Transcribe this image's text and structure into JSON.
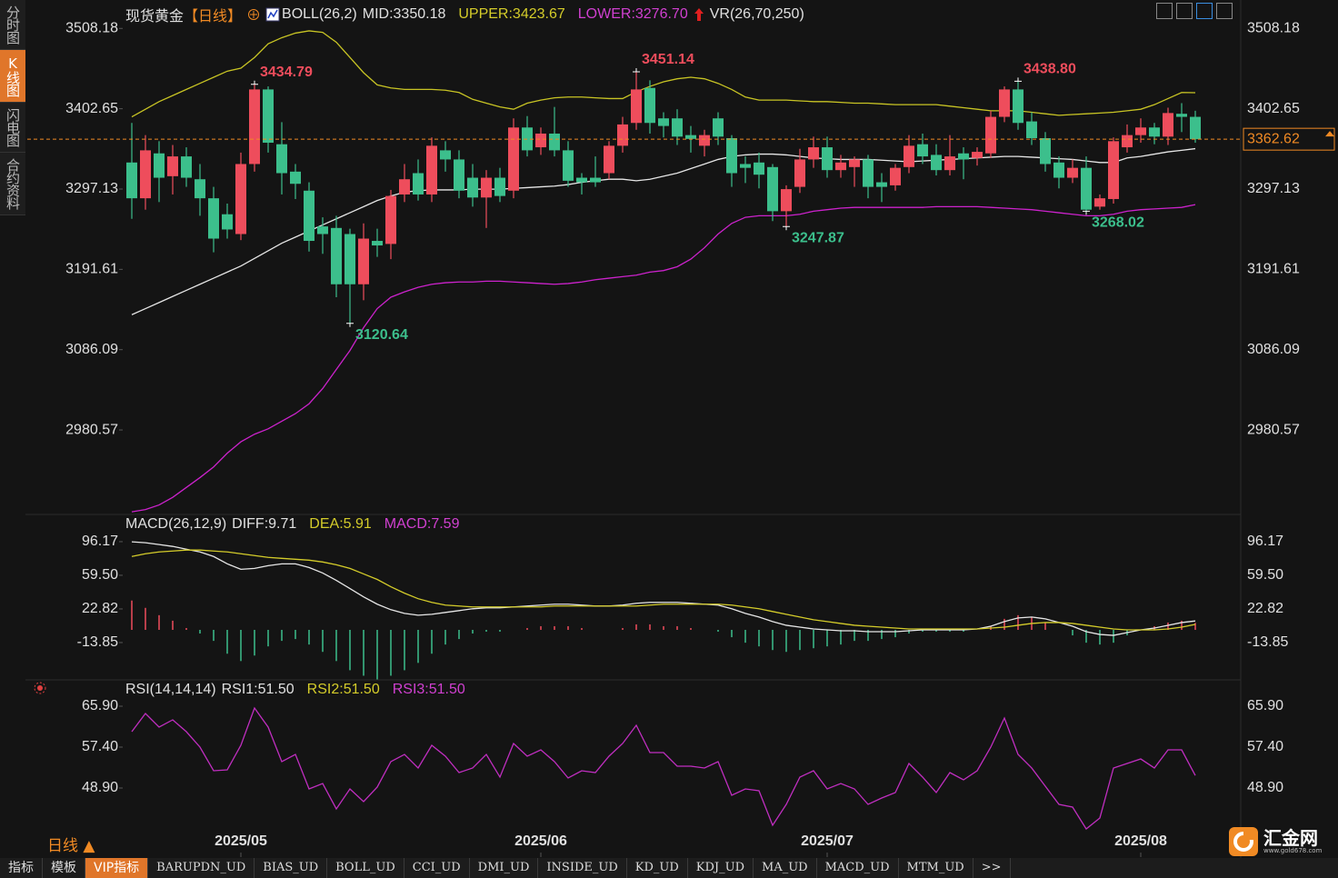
{
  "chart_data": [
    {
      "type": "candlestick",
      "legend": [
        {
          "text": "现货黄金",
          "color": "#e0e0e0"
        },
        {
          "text": "【日线】",
          "color": "#f08a24"
        },
        {
          "text": "BOLL(26,2)",
          "color": "#e0e0e0"
        },
        {
          "text": "MID:3350.18",
          "color": "#e0e0e0"
        },
        {
          "text": "UPPER:3423.67",
          "color": "#d4cc2a"
        },
        {
          "text": "LOWER:3276.70",
          "color": "#d040d0"
        },
        {
          "text": "VR(26,70,250)",
          "color": "#e0e0e0"
        }
      ],
      "up_color": "#ee4d5c",
      "down_color": "#3cbf8c",
      "last_price_color": "#f08a24",
      "ylim": [
        2860,
        3530
      ],
      "yticks": [
        3508.18,
        3402.65,
        3297.13,
        3191.61,
        3086.09,
        2980.57
      ],
      "open": [
        3332,
        3285,
        3344,
        3314,
        3340,
        3310,
        3285,
        3264,
        3238,
        3330,
        3428,
        3356,
        3320,
        3295,
        3248,
        3246,
        3238,
        3172,
        3229,
        3225,
        3290,
        3318,
        3290,
        3348,
        3336,
        3312,
        3286,
        3312,
        3295,
        3378,
        3352,
        3370,
        3348,
        3312,
        3312,
        3318,
        3354,
        3384,
        3430,
        3390,
        3390,
        3368,
        3354,
        3390,
        3364,
        3330,
        3332,
        3326,
        3268,
        3300,
        3336,
        3352,
        3322,
        3326,
        3336,
        3306,
        3302,
        3326,
        3356,
        3342,
        3322,
        3344,
        3338,
        3344,
        3392,
        3428,
        3386,
        3364,
        3332,
        3312,
        3325,
        3274,
        3284,
        3352,
        3368,
        3378,
        3366,
        3396,
        3392
      ],
      "high": [
        3384,
        3368,
        3360,
        3355,
        3352,
        3330,
        3300,
        3278,
        3345,
        3434.79,
        3432,
        3385,
        3330,
        3306,
        3260,
        3262,
        3245,
        3252,
        3245,
        3296,
        3330,
        3336,
        3365,
        3360,
        3348,
        3330,
        3322,
        3325,
        3390,
        3393,
        3378,
        3405,
        3360,
        3318,
        3340,
        3360,
        3392,
        3451.14,
        3440,
        3398,
        3402,
        3380,
        3375,
        3398,
        3368,
        3340,
        3345,
        3330,
        3302,
        3350,
        3366,
        3366,
        3342,
        3340,
        3342,
        3318,
        3330,
        3368,
        3370,
        3356,
        3368,
        3352,
        3352,
        3400,
        3432,
        3438.8,
        3398,
        3372,
        3340,
        3336,
        3340,
        3290,
        3365,
        3382,
        3390,
        3384,
        3404,
        3410,
        3400
      ],
      "low": [
        3258,
        3270,
        3280,
        3290,
        3300,
        3262,
        3214,
        3232,
        3230,
        3320,
        3345,
        3290,
        3284,
        3215,
        3212,
        3155,
        3120.64,
        3151,
        3208,
        3205,
        3280,
        3282,
        3280,
        3320,
        3285,
        3274,
        3246,
        3280,
        3285,
        3340,
        3342,
        3340,
        3300,
        3290,
        3300,
        3310,
        3345,
        3375,
        3370,
        3365,
        3355,
        3345,
        3340,
        3355,
        3300,
        3305,
        3298,
        3255,
        3247.87,
        3292,
        3325,
        3312,
        3312,
        3300,
        3285,
        3280,
        3295,
        3318,
        3330,
        3315,
        3315,
        3310,
        3328,
        3338,
        3385,
        3375,
        3355,
        3320,
        3298,
        3305,
        3268.02,
        3270,
        3278,
        3345,
        3358,
        3356,
        3355,
        3372,
        3358
      ],
      "close": [
        3285,
        3348,
        3312,
        3340,
        3312,
        3285,
        3232,
        3244,
        3330,
        3428,
        3358,
        3318,
        3304,
        3229,
        3238,
        3172,
        3172,
        3232,
        3223,
        3288,
        3310,
        3290,
        3354,
        3336,
        3295,
        3286,
        3312,
        3288,
        3378,
        3348,
        3370,
        3348,
        3308,
        3306,
        3306,
        3354,
        3382,
        3428,
        3384,
        3380,
        3366,
        3363,
        3368,
        3366,
        3318,
        3325,
        3316,
        3268,
        3297,
        3336,
        3352,
        3322,
        3332,
        3336,
        3300,
        3300,
        3325,
        3354,
        3340,
        3322,
        3340,
        3336,
        3346,
        3392,
        3428,
        3384,
        3364,
        3330,
        3312,
        3325,
        3270,
        3285,
        3360,
        3368,
        3378,
        3366,
        3397,
        3392,
        3362.62
      ],
      "high_annotations": [
        {
          "x": 9,
          "label": "3434.79"
        },
        {
          "x": 37,
          "label": "3451.14"
        },
        {
          "x": 65,
          "label": "3438.80"
        }
      ],
      "low_annotations": [
        {
          "x": 16,
          "label": "3120.64"
        },
        {
          "x": 48,
          "label": "3247.87"
        },
        {
          "x": 70,
          "label": "3268.02"
        }
      ],
      "series": [
        {
          "color": "#c8c424",
          "values": [
            3392,
            3402,
            3412,
            3420,
            3428,
            3436,
            3444,
            3452,
            3456,
            3470,
            3488,
            3496,
            3502,
            3505,
            3503,
            3490,
            3470,
            3450,
            3434,
            3430,
            3428,
            3428,
            3428,
            3427,
            3424,
            3415,
            3410,
            3405,
            3402,
            3410,
            3414,
            3417,
            3418,
            3418,
            3417,
            3416,
            3416,
            3425,
            3432,
            3438,
            3442,
            3444,
            3442,
            3436,
            3428,
            3418,
            3414,
            3414,
            3414,
            3413,
            3412,
            3412,
            3411,
            3410,
            3410,
            3409,
            3408,
            3408,
            3408,
            3408,
            3406,
            3404,
            3402,
            3400,
            3400,
            3400,
            3398,
            3396,
            3394,
            3395,
            3396,
            3397,
            3398,
            3400,
            3402,
            3408,
            3416,
            3424,
            3423.67
          ]
        },
        {
          "color": "#e6e6e6",
          "values": [
            3132,
            3140,
            3148,
            3156,
            3164,
            3172,
            3180,
            3188,
            3196,
            3206,
            3216,
            3226,
            3234,
            3242,
            3250,
            3258,
            3266,
            3274,
            3282,
            3288,
            3293,
            3295,
            3296,
            3296,
            3296,
            3297,
            3297,
            3297,
            3298,
            3299,
            3300,
            3301,
            3303,
            3306,
            3308,
            3310,
            3310,
            3308,
            3310,
            3314,
            3318,
            3324,
            3330,
            3336,
            3340,
            3342,
            3343,
            3343,
            3342,
            3340,
            3338,
            3337,
            3336,
            3336,
            3336,
            3335,
            3334,
            3333,
            3334,
            3335,
            3336,
            3337,
            3338,
            3339,
            3340,
            3340,
            3339,
            3338,
            3337,
            3336,
            3334,
            3332,
            3332,
            3338,
            3340,
            3343,
            3346,
            3348,
            3350.18
          ]
        },
        {
          "color": "#cc22cc",
          "values": [
            2873,
            2876,
            2882,
            2892,
            2905,
            2918,
            2932,
            2950,
            2965,
            2975,
            2982,
            2992,
            3002,
            3015,
            3035,
            3060,
            3085,
            3115,
            3140,
            3155,
            3162,
            3168,
            3172,
            3174,
            3175,
            3175,
            3176,
            3176,
            3175,
            3174,
            3173,
            3172,
            3173,
            3175,
            3178,
            3180,
            3182,
            3184,
            3188,
            3190,
            3195,
            3205,
            3220,
            3238,
            3252,
            3260,
            3262,
            3262,
            3262,
            3264,
            3268,
            3270,
            3272,
            3273,
            3273,
            3273,
            3273,
            3273,
            3273,
            3274,
            3274,
            3274,
            3274,
            3273,
            3272,
            3271,
            3270,
            3268,
            3266,
            3264,
            3262,
            3262,
            3264,
            3268,
            3270,
            3271,
            3272,
            3273,
            3276.7
          ]
        }
      ]
    },
    {
      "type": "bar_line",
      "legend": [
        {
          "text": "MACD(26,12,9)",
          "color": "#e0e0e0"
        },
        {
          "text": "DIFF:9.71",
          "color": "#e0e0e0"
        },
        {
          "text": "DEA:5.91",
          "color": "#d4cc2a"
        },
        {
          "text": "MACD:7.59",
          "color": "#d040d0"
        }
      ],
      "ylim": [
        -55,
        110
      ],
      "yticks": [
        96.17,
        {
          "value": 59.5,
          "label": "59.50"
        },
        22.82,
        -13.85
      ],
      "histogram": {
        "up_color": "#ee4d5c",
        "down_color": "#3cbf8c",
        "values": [
          32,
          24,
          16,
          10,
          2,
          -4,
          -12,
          -26,
          -34,
          -28,
          -18,
          -12,
          -10,
          -16,
          -24,
          -34,
          -44,
          -50,
          -54,
          -50,
          -44,
          -36,
          -26,
          -16,
          -10,
          -4,
          -2,
          -2,
          0,
          2,
          4,
          4,
          4,
          2,
          0,
          0,
          2,
          6,
          6,
          4,
          4,
          2,
          0,
          -2,
          -8,
          -14,
          -18,
          -22,
          -24,
          -22,
          -20,
          -18,
          -16,
          -12,
          -12,
          -10,
          -8,
          -4,
          -2,
          -2,
          -2,
          -2,
          0,
          4,
          12,
          16,
          14,
          8,
          0,
          -6,
          -14,
          -16,
          -14,
          -6,
          0,
          4,
          8,
          10,
          7.59
        ]
      },
      "series": [
        {
          "color": "#e6e6e6",
          "values": [
            96,
            95,
            93,
            91,
            88,
            85,
            80,
            72,
            66,
            67,
            70,
            72,
            72,
            68,
            62,
            54,
            45,
            36,
            28,
            22,
            18,
            16,
            17,
            19,
            21,
            23,
            24,
            24,
            25,
            26,
            27,
            28,
            28,
            27,
            26,
            26,
            27,
            29,
            30,
            30,
            30,
            29,
            28,
            27,
            23,
            18,
            14,
            9,
            5,
            3,
            1,
            0,
            -1,
            -1,
            -2,
            -2,
            -2,
            -1,
            0,
            0,
            0,
            0,
            1,
            4,
            9,
            13,
            14,
            12,
            8,
            4,
            -2,
            -5,
            -6,
            -3,
            0,
            2,
            5,
            8,
            9.71
          ]
        },
        {
          "color": "#d4cc2a",
          "values": [
            80,
            83,
            85,
            86,
            87,
            87,
            86,
            85,
            83,
            81,
            79,
            78,
            77,
            76,
            74,
            71,
            67,
            61,
            55,
            47,
            40,
            34,
            30,
            27,
            26,
            25,
            25,
            25,
            25,
            25,
            25,
            26,
            26,
            26,
            26,
            26,
            26,
            26,
            27,
            28,
            28,
            28,
            28,
            28,
            27,
            25,
            23,
            20,
            17,
            14,
            11,
            9,
            7,
            5,
            4,
            3,
            2,
            1,
            1,
            1,
            1,
            1,
            1,
            2,
            3,
            5,
            7,
            8,
            8,
            7,
            5,
            3,
            1,
            0,
            0,
            0,
            1,
            3,
            5.91
          ]
        }
      ]
    },
    {
      "type": "line",
      "legend": [
        {
          "text": "RSI(14,14,14)",
          "color": "#e0e0e0"
        },
        {
          "text": "RSI1:51.50",
          "color": "#e0e0e0"
        },
        {
          "text": "RSI2:51.50",
          "color": "#d4cc2a"
        },
        {
          "text": "RSI3:51.50",
          "color": "#d040d0"
        }
      ],
      "ylim": [
        38,
        70
      ],
      "yticks": [
        {
          "value": 65.9,
          "label": "65.90"
        },
        {
          "value": 57.4,
          "label": "57.40"
        },
        {
          "value": 48.9,
          "label": "48.90"
        }
      ],
      "xticks": [
        {
          "value": 8,
          "label": "2025/05"
        },
        {
          "value": 30,
          "label": "2025/06"
        },
        {
          "value": 51,
          "label": "2025/07"
        },
        {
          "value": 74,
          "label": "2025/08"
        }
      ],
      "series": [
        {
          "color": "#c02ec0",
          "values": [
            60.61,
            64.39,
            61.56,
            63.07,
            60.61,
            57.4,
            52.49,
            52.68,
            57.78,
            65.52,
            61.56,
            54.38,
            55.89,
            48.71,
            49.84,
            44.56,
            48.71,
            46.07,
            49.09,
            54.38,
            55.89,
            53.06,
            57.78,
            55.51,
            52.11,
            53.06,
            55.89,
            51.17,
            58.16,
            55.51,
            56.83,
            54.38,
            50.98,
            52.49,
            52.11,
            55.51,
            58.16,
            61.93,
            56.27,
            56.27,
            53.43,
            53.43,
            53.06,
            54.38,
            47.39,
            48.71,
            48.33,
            41.16,
            45.5,
            51.17,
            52.49,
            48.71,
            49.84,
            48.71,
            45.5,
            46.82,
            47.96,
            54,
            51.17,
            47.96,
            52.11,
            50.6,
            52.49,
            57.4,
            63.44,
            55.89,
            53.06,
            49.28,
            45.5,
            44.93,
            40.4,
            42.67,
            53.06,
            54,
            54.94,
            53.06,
            56.83,
            56.83,
            51.5
          ]
        }
      ]
    }
  ],
  "sidebar": {
    "tabs": [
      "分时图",
      "K线图",
      "闪电图",
      "合约资料"
    ],
    "active": 1
  },
  "period_label": "日线 ▲",
  "toolbar": {
    "items": [
      "指标",
      "模板",
      "VIP指标",
      "BARUPDN_UD",
      "BIAS_UD",
      "BOLL_UD",
      "CCI_UD",
      "DMI_UD",
      "INSIDE_UD",
      "KD_UD",
      "KDJ_UD",
      "MA_UD",
      "MACD_UD",
      "MTM_UD",
      ">>"
    ],
    "active": 2
  },
  "logo": {
    "brand": "汇金网",
    "url": "www.gold678.com"
  }
}
